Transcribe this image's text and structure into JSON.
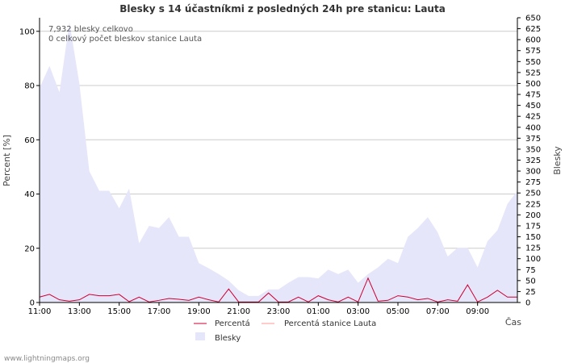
{
  "chart_data": {
    "type": "area",
    "title": "Blesky s 14 účastníkmi z posledných 24h pre stanicu: Lauta",
    "ylabel_left": "Percent   [%]",
    "ylabel_right": "Blesky",
    "xlabel": "Čas",
    "ylim_left": [
      0,
      105
    ],
    "ylim_right": [
      0,
      650
    ],
    "yticks_left": [
      0,
      20,
      40,
      60,
      80,
      100
    ],
    "yticks_right": [
      0,
      25,
      50,
      75,
      100,
      125,
      150,
      175,
      200,
      225,
      250,
      275,
      300,
      325,
      350,
      375,
      400,
      425,
      450,
      475,
      500,
      525,
      550,
      575,
      600,
      625,
      650
    ],
    "x_hours": [
      0,
      1,
      2,
      3,
      4,
      5,
      6,
      7,
      8,
      9,
      10,
      11,
      12,
      13,
      14,
      15,
      16,
      17,
      18,
      19,
      20,
      21,
      22,
      23,
      24,
      25,
      26,
      27,
      28,
      29,
      30,
      31,
      32,
      33,
      34,
      35,
      36,
      37,
      38,
      39,
      40,
      41,
      42,
      43,
      44,
      45,
      46,
      47,
      48
    ],
    "xlim": [
      0,
      48
    ],
    "xticks": [
      {
        "x": 0,
        "label": "11:00"
      },
      {
        "x": 4,
        "label": "13:00"
      },
      {
        "x": 8,
        "label": "15:00"
      },
      {
        "x": 12,
        "label": "17:00"
      },
      {
        "x": 16,
        "label": "19:00"
      },
      {
        "x": 20,
        "label": "21:00"
      },
      {
        "x": 24,
        "label": "23:00"
      },
      {
        "x": 28,
        "label": "01:00"
      },
      {
        "x": 32,
        "label": "03:00"
      },
      {
        "x": 36,
        "label": "05:00"
      },
      {
        "x": 40,
        "label": "07:00"
      },
      {
        "x": 44,
        "label": "09:00"
      }
    ],
    "series": [
      {
        "name": "Blesky",
        "axis": "right",
        "style": "area",
        "values": [
          490,
          540,
          480,
          640,
          500,
          300,
          255,
          255,
          215,
          260,
          135,
          175,
          170,
          195,
          150,
          150,
          90,
          78,
          65,
          50,
          28,
          15,
          15,
          30,
          30,
          45,
          58,
          58,
          55,
          75,
          65,
          75,
          45,
          65,
          80,
          100,
          90,
          150,
          170,
          195,
          160,
          105,
          125,
          125,
          80,
          140,
          165,
          225,
          255
        ]
      },
      {
        "name": "Percentá",
        "axis": "left",
        "style": "line",
        "values": [
          2.0,
          3.0,
          1.0,
          0.5,
          1.0,
          3.0,
          2.5,
          2.5,
          3.0,
          0.3,
          2.0,
          0.2,
          0.8,
          1.5,
          1.2,
          0.8,
          2.0,
          1.0,
          0.2,
          5.0,
          0.2,
          0.2,
          0.2,
          3.5,
          0.2,
          0.2,
          2.0,
          0.2,
          2.5,
          1.0,
          0.2,
          2.0,
          0.2,
          9.0,
          0.5,
          0.8,
          2.5,
          2.0,
          1.0,
          1.5,
          0.2,
          1.0,
          0.5,
          6.5,
          0.2,
          2.0,
          4.5,
          2.0,
          2.0
        ]
      },
      {
        "name": "Percentá stanice Lauta",
        "axis": "left",
        "style": "line",
        "values": [
          0,
          0,
          0,
          0,
          0,
          0,
          0,
          0,
          0,
          0,
          0,
          0,
          0,
          0,
          0,
          0,
          0,
          0,
          0,
          0,
          0,
          0,
          0,
          0,
          0,
          0,
          0,
          0,
          0,
          0,
          0,
          0,
          0,
          0,
          0,
          0,
          0,
          0,
          0,
          0,
          0,
          0,
          0,
          0,
          0,
          0,
          0,
          0,
          0
        ]
      }
    ],
    "annotations": [
      "7,932 blesky celkovo",
      "0 celkový počet bleskov stanice Lauta"
    ],
    "legend": [
      {
        "name": "Percentá",
        "color": "#cc0033",
        "kind": "line"
      },
      {
        "name": "Percentá stanice Lauta",
        "color": "#ff9999",
        "kind": "line"
      },
      {
        "name": "Blesky",
        "color": "#e6e6fa",
        "kind": "area"
      }
    ],
    "grid": true
  },
  "colors": {
    "area_fill": "#e6e6fa",
    "line_percent": "#cc0033",
    "line_station": "#ff9999",
    "grid": "#cccccc"
  },
  "footer": "www.lightningmaps.org"
}
